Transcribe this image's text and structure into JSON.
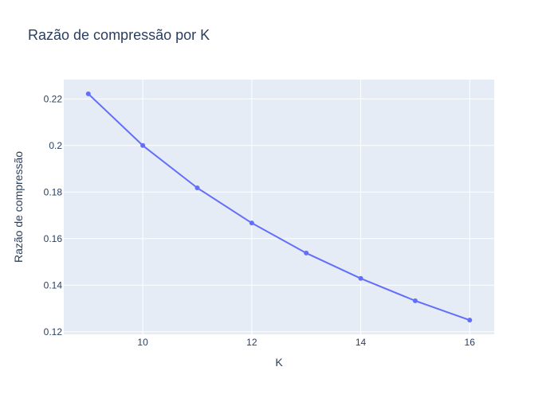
{
  "chart_data": {
    "type": "line",
    "title": "Razão de compressão por K",
    "xlabel": "K",
    "ylabel": "Razão de compressão",
    "x": [
      9,
      10,
      11,
      12,
      13,
      14,
      15,
      16
    ],
    "series": [
      {
        "values": [
          0.2222,
          0.2,
          0.1818,
          0.1667,
          0.1538,
          0.1429,
          0.1333,
          0.125
        ]
      }
    ],
    "xlim": [
      8.55,
      16.45
    ],
    "ylim": [
      0.1189,
      0.2283
    ],
    "x_ticks": [
      10,
      12,
      14,
      16
    ],
    "x_tick_labels": [
      "10",
      "12",
      "14",
      "16"
    ],
    "y_ticks": [
      0.12,
      0.14,
      0.16,
      0.18,
      0.2,
      0.22
    ],
    "y_tick_labels": [
      "0.12",
      "0.14",
      "0.16",
      "0.18",
      "0.2",
      "0.22"
    ],
    "grid": true,
    "colors": {
      "plot_background": "#e5ecf6",
      "grid": "#ffffff",
      "line": "#636efa",
      "text": "#2a3f5f"
    }
  }
}
